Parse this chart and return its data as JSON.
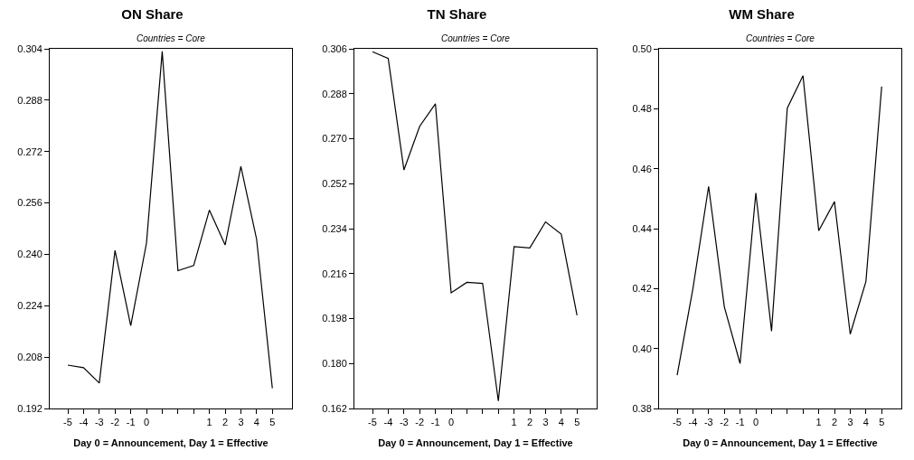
{
  "chart_data": [
    {
      "type": "line",
      "title": "ON Share",
      "subtitle": "Countries = Core",
      "xlabel": "Day 0 = Announcement, Day 1 = Effective",
      "categories": [
        "-5",
        "-4",
        "-3",
        "-2",
        "-1",
        "0",
        null,
        null,
        null,
        "1",
        "2",
        "3",
        "4",
        "5"
      ],
      "color": "#000000",
      "values": [
        0.2055,
        0.2047,
        0.1999,
        0.2412,
        0.2178,
        0.2435,
        0.3032,
        0.2349,
        0.2365,
        0.2538,
        0.2429,
        0.2674,
        0.2447,
        0.1983
      ],
      "ylim": [
        0.192,
        0.304
      ],
      "yticks": [
        {
          "value": 0.192,
          "label": "0.192"
        },
        {
          "value": 0.208,
          "label": "0.208"
        },
        {
          "value": 0.224,
          "label": "0.224"
        },
        {
          "value": 0.24,
          "label": "0.240"
        },
        {
          "value": 0.256,
          "label": "0.256"
        },
        {
          "value": 0.272,
          "label": "0.272"
        },
        {
          "value": 0.288,
          "label": "0.288"
        },
        {
          "value": 0.304,
          "label": "0.304"
        }
      ]
    },
    {
      "type": "line",
      "title": "TN Share",
      "subtitle": "Countries = Core",
      "xlabel": "Day 0 = Announcement, Day 1 = Effective",
      "categories": [
        "-5",
        "-4",
        "-3",
        "-2",
        "-1",
        "0",
        null,
        null,
        null,
        "1",
        "2",
        "3",
        "4",
        "5"
      ],
      "color": "#000000",
      "values": [
        0.3048,
        0.3021,
        0.2575,
        0.275,
        0.284,
        0.2083,
        0.2125,
        0.2121,
        0.165,
        0.2268,
        0.2263,
        0.2367,
        0.2318,
        0.1993
      ],
      "ylim": [
        0.162,
        0.306
      ],
      "yticks": [
        {
          "value": 0.162,
          "label": "0.162"
        },
        {
          "value": 0.18,
          "label": "0.180"
        },
        {
          "value": 0.198,
          "label": "0.198"
        },
        {
          "value": 0.216,
          "label": "0.216"
        },
        {
          "value": 0.234,
          "label": "0.234"
        },
        {
          "value": 0.252,
          "label": "0.252"
        },
        {
          "value": 0.27,
          "label": "0.270"
        },
        {
          "value": 0.288,
          "label": "0.288"
        },
        {
          "value": 0.306,
          "label": "0.306"
        }
      ]
    },
    {
      "type": "line",
      "title": "WM Share",
      "subtitle": "Countries = Core",
      "xlabel": "Day 0 = Announcement, Day 1 = Effective",
      "categories": [
        "-5",
        "-4",
        "-3",
        "-2",
        "-1",
        "0",
        null,
        null,
        null,
        "1",
        "2",
        "3",
        "4",
        "5"
      ],
      "color": "#000000",
      "values": [
        0.3911,
        0.4199,
        0.4541,
        0.4139,
        0.395,
        0.4519,
        0.4058,
        0.4802,
        0.491,
        0.4393,
        0.449,
        0.4048,
        0.4224,
        0.4874
      ],
      "ylim": [
        0.38,
        0.5
      ],
      "yticks": [
        {
          "value": 0.38,
          "label": "0.38"
        },
        {
          "value": 0.4,
          "label": "0.40"
        },
        {
          "value": 0.42,
          "label": "0.42"
        },
        {
          "value": 0.44,
          "label": "0.44"
        },
        {
          "value": 0.46,
          "label": "0.46"
        },
        {
          "value": 0.48,
          "label": "0.48"
        },
        {
          "value": 0.5,
          "label": "0.50"
        }
      ]
    }
  ]
}
